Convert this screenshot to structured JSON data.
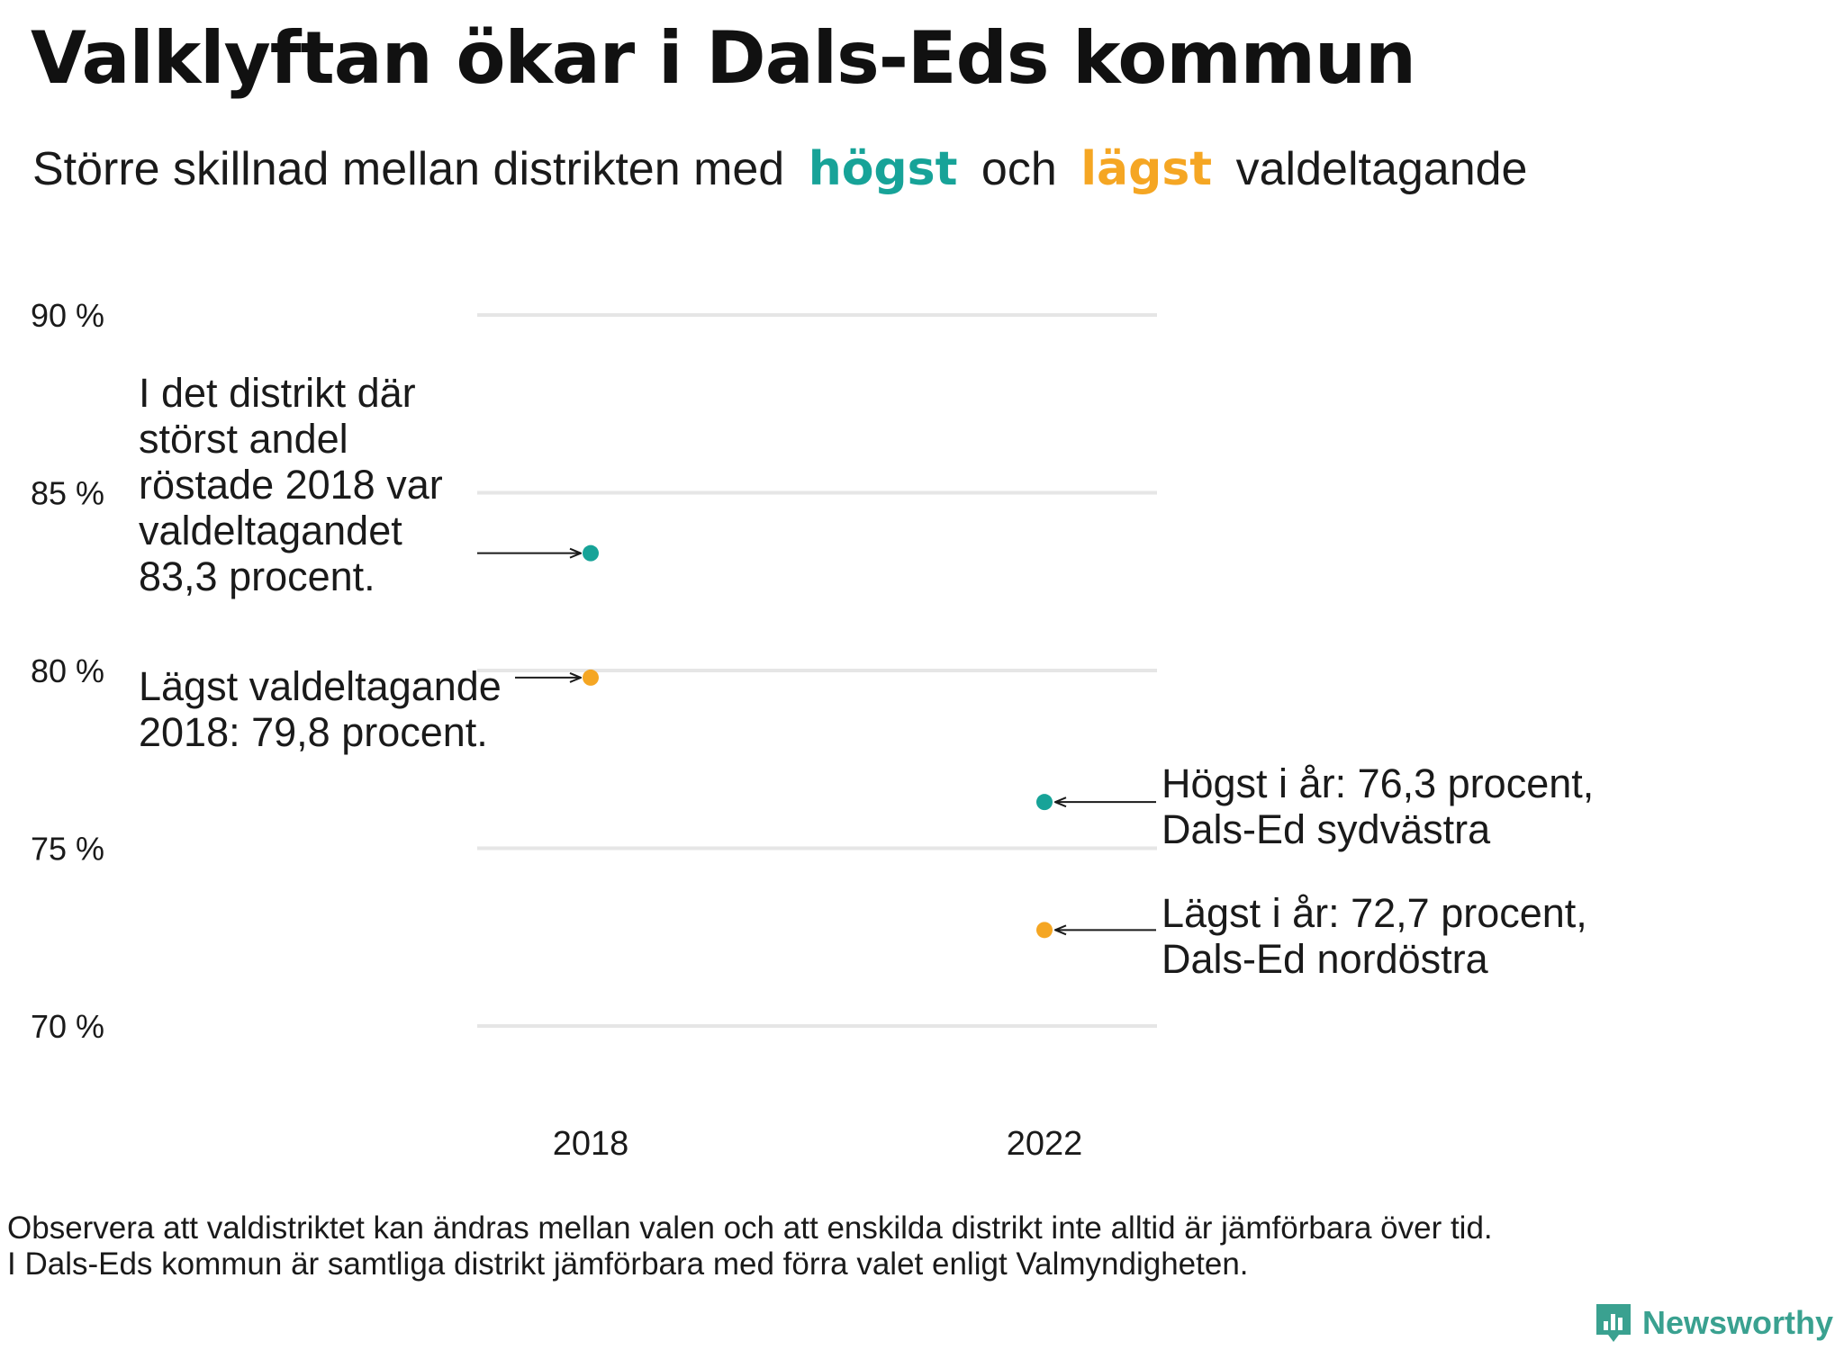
{
  "title": "Valklyftan ökar i Dals-Eds kommun",
  "subtitle": {
    "part1": "Större skillnad mellan distrikten med",
    "highest_word": "högst",
    "and_word": "och",
    "lowest_word": "lägst",
    "part2": "valdeltagande"
  },
  "colors": {
    "highest": "#17a398",
    "lowest": "#f5a623",
    "grid": "#e6e6e6",
    "text": "#1a1a1a"
  },
  "chart_data": {
    "type": "scatter",
    "categories": [
      "2018",
      "2022"
    ],
    "ylim": [
      70,
      90
    ],
    "yticks": [
      90,
      85,
      80,
      75,
      70
    ],
    "ytick_labels": [
      "90 %",
      "85 %",
      "80 %",
      "75 %",
      "70 %"
    ],
    "grid": true,
    "series": [
      {
        "color": "#17a398",
        "values": [
          83.3,
          76.3
        ]
      },
      {
        "color": "#f5a623",
        "values": [
          79.8,
          72.7
        ]
      }
    ],
    "annotations": [
      {
        "lines": [
          "I det distrikt där",
          "störst andel",
          "röstade 2018 var",
          "valdeltagandet",
          "83,3 procent."
        ]
      },
      {
        "lines": [
          "Lägst valdeltagande",
          "2018: 79,8 procent."
        ]
      },
      {
        "lines": [
          "Högst i år: 76,3 procent,",
          "Dals-Ed sydvästra"
        ]
      },
      {
        "lines": [
          "Lägst i år: 72,7 procent,",
          "Dals-Ed nordöstra"
        ]
      }
    ]
  },
  "footnote": [
    "Observera att valdistriktet kan ändras mellan valen och att enskilda distrikt inte alltid är jämförbara över tid.",
    "I Dals-Eds kommun är samtliga distrikt jämförbara med förra valet enligt Valmyndigheten."
  ],
  "brand": "Newsworthy"
}
